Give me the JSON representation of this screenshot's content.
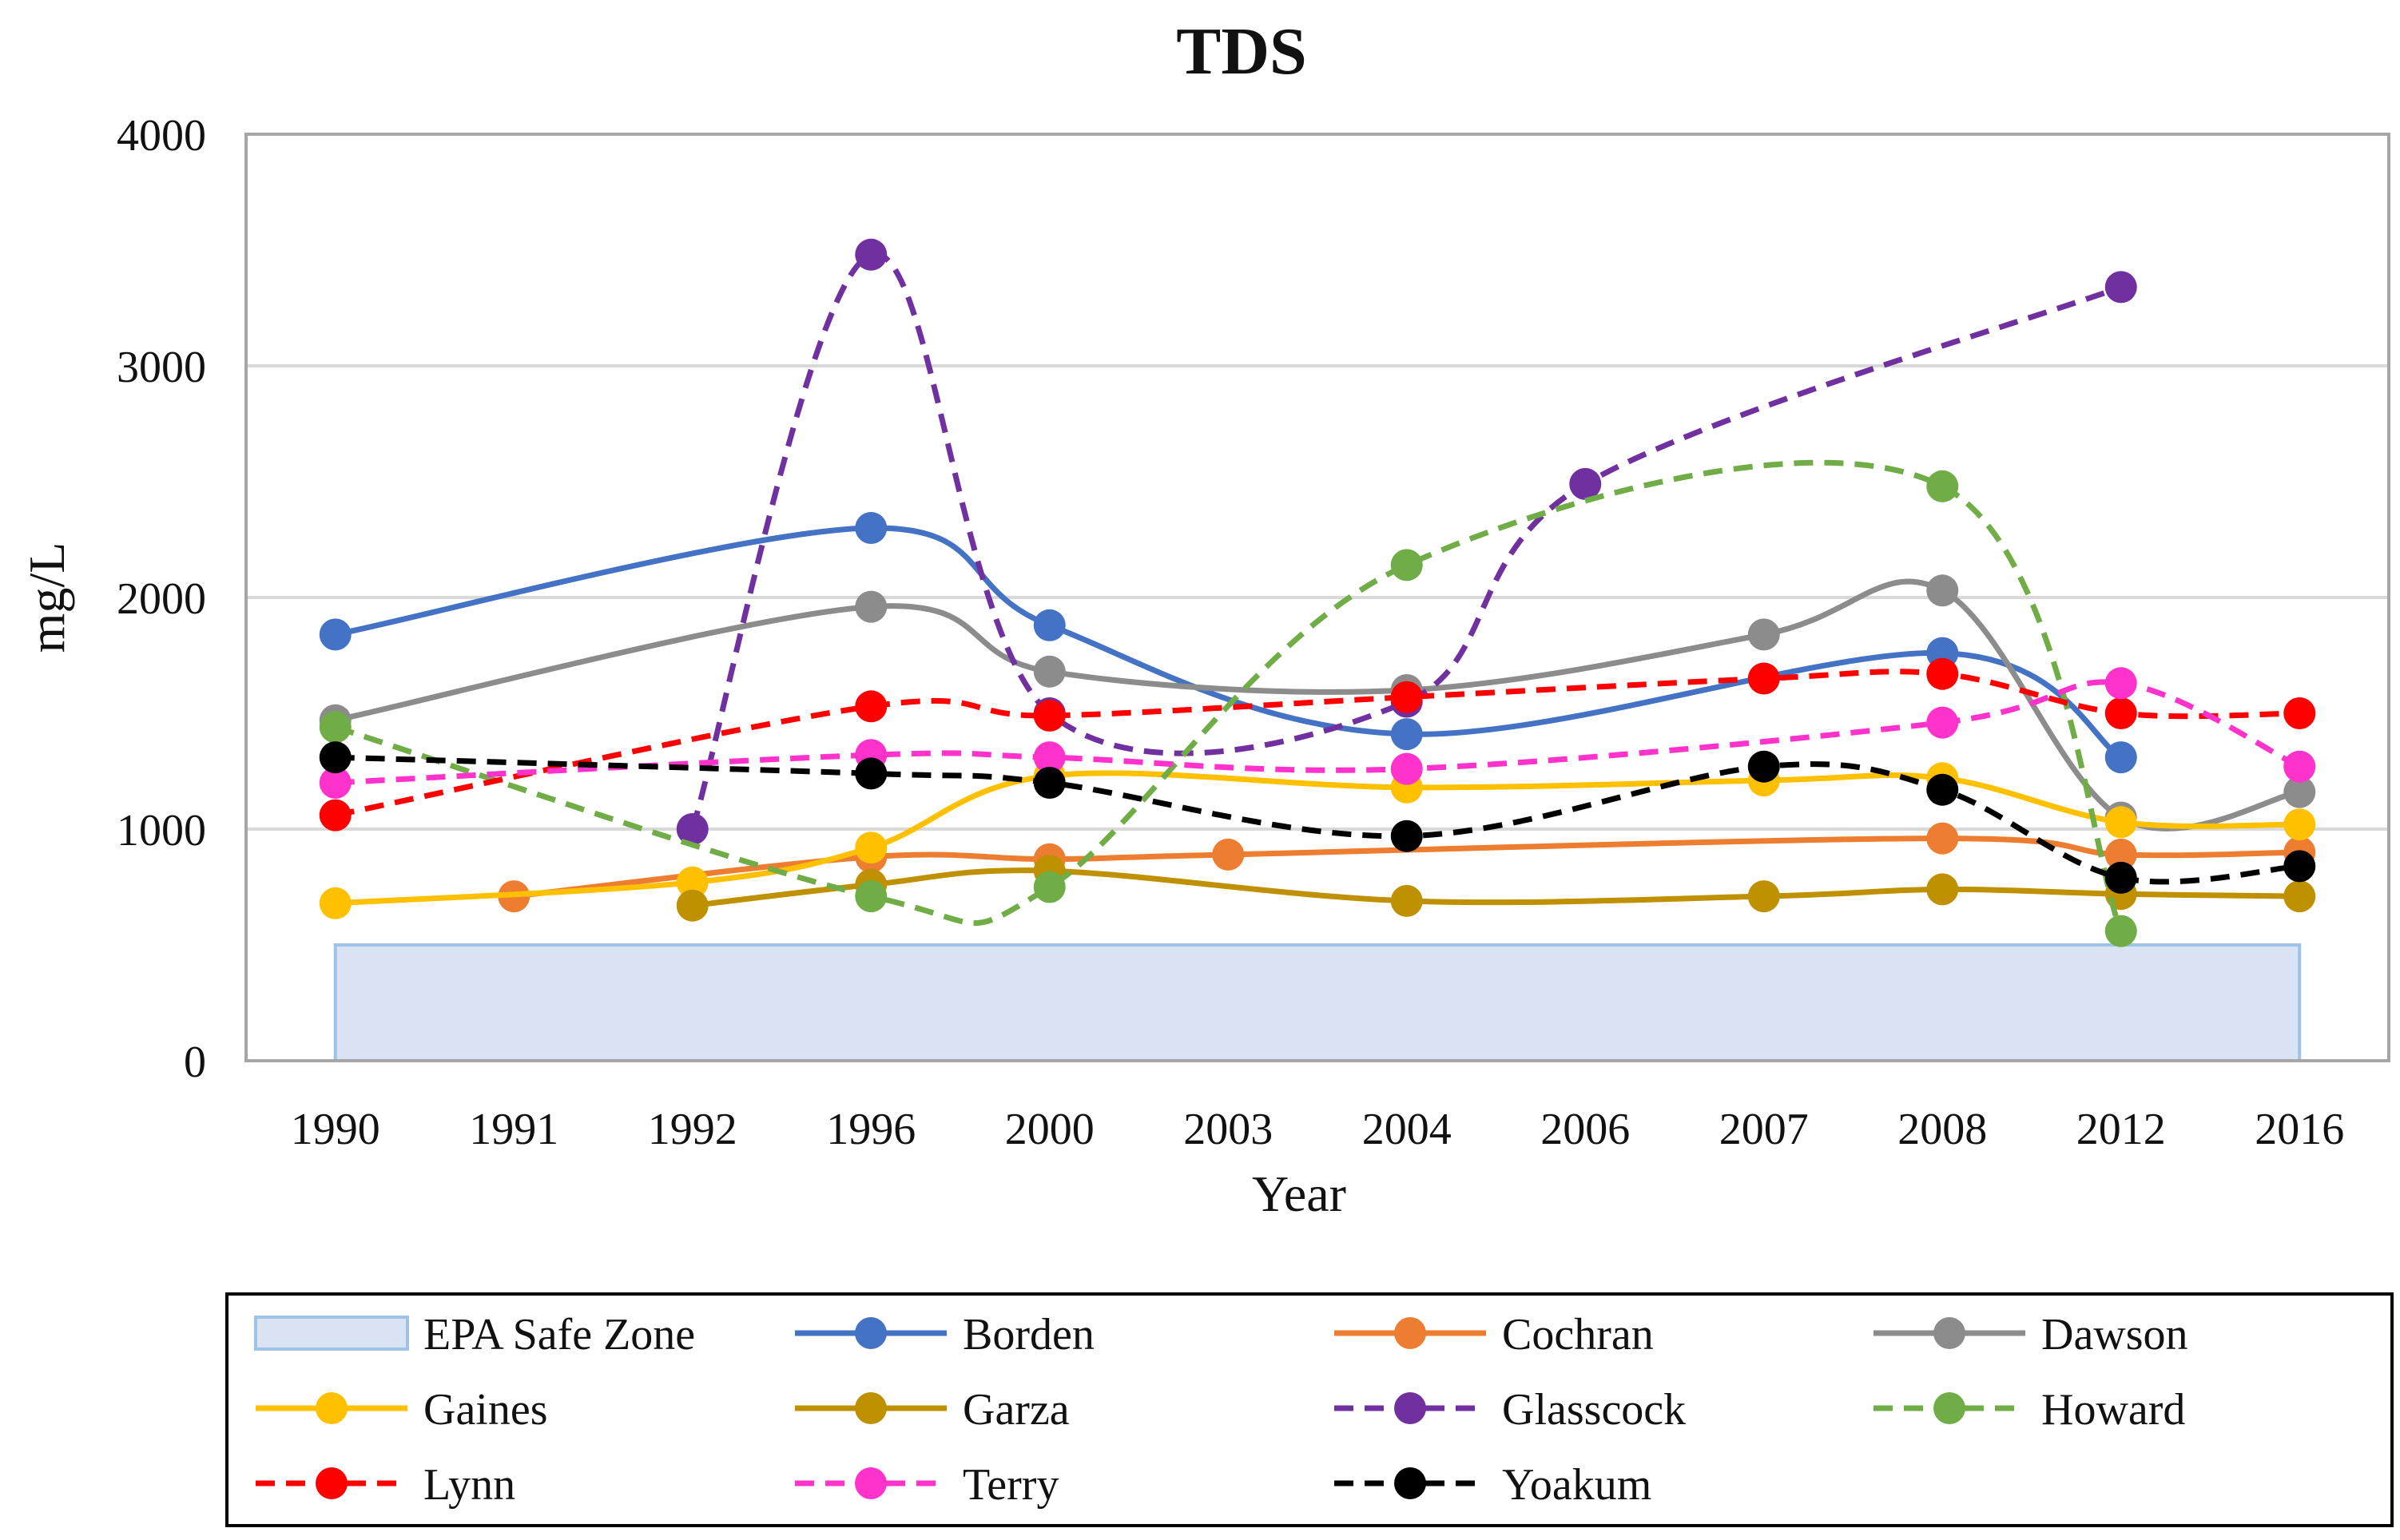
{
  "chart_data": {
    "type": "line",
    "title": "TDS",
    "xlabel": "Year",
    "ylabel": "mg/L",
    "ylim": [
      0,
      4000
    ],
    "yticks": [
      0,
      1000,
      2000,
      3000,
      4000
    ],
    "ytick_labels": [
      "0",
      "1000",
      "2000",
      "3000",
      "4000"
    ],
    "grid": true,
    "legend_position": "bottom",
    "categories": [
      "1990",
      "1991",
      "1992",
      "1996",
      "2000",
      "2003",
      "2004",
      "2006",
      "2007",
      "2008",
      "2012",
      "2016"
    ],
    "band": {
      "name": "EPA Safe Zone",
      "from": 0,
      "to": 500,
      "color": "#dae3f3",
      "edge": "#9dc3e6"
    },
    "series": [
      {
        "name": "Borden",
        "color": "#4472c4",
        "dashed": false,
        "values": [
          1840,
          null,
          null,
          2300,
          1880,
          null,
          1410,
          null,
          null,
          1760,
          1310,
          null
        ]
      },
      {
        "name": "Cochran",
        "color": "#ed7d31",
        "dashed": false,
        "values": [
          null,
          710,
          null,
          880,
          870,
          890,
          null,
          null,
          null,
          960,
          890,
          900
        ]
      },
      {
        "name": "Dawson",
        "color": "#8c8c8c",
        "dashed": false,
        "values": [
          1470,
          null,
          null,
          1960,
          1680,
          null,
          1600,
          null,
          1840,
          2030,
          1050,
          1160
        ]
      },
      {
        "name": "Gaines",
        "color": "#ffc000",
        "dashed": false,
        "values": [
          680,
          null,
          770,
          920,
          1230,
          null,
          1180,
          null,
          1210,
          1220,
          1030,
          1020
        ]
      },
      {
        "name": "Garza",
        "color": "#bf9000",
        "dashed": false,
        "values": [
          null,
          null,
          670,
          760,
          820,
          null,
          690,
          null,
          710,
          740,
          720,
          710
        ]
      },
      {
        "name": "Glasscock",
        "color": "#7030a0",
        "dashed": true,
        "values": [
          null,
          null,
          1000,
          3480,
          1500,
          null,
          1550,
          2490,
          null,
          null,
          3340,
          null
        ]
      },
      {
        "name": "Howard",
        "color": "#70ad47",
        "dashed": true,
        "values": [
          1440,
          null,
          null,
          710,
          750,
          null,
          2140,
          null,
          null,
          2480,
          560,
          null
        ]
      },
      {
        "name": "Lynn",
        "color": "#ff0000",
        "dashed": true,
        "values": [
          1060,
          null,
          null,
          1530,
          1490,
          null,
          1570,
          null,
          1650,
          1670,
          1500,
          1500
        ]
      },
      {
        "name": "Terry",
        "color": "#ff33cc",
        "dashed": true,
        "values": [
          1200,
          null,
          null,
          1320,
          1310,
          null,
          1260,
          null,
          null,
          1460,
          1630,
          1270
        ]
      },
      {
        "name": "Yoakum",
        "color": "#000000",
        "dashed": true,
        "values": [
          1310,
          null,
          null,
          1240,
          1200,
          null,
          970,
          null,
          1270,
          1170,
          790,
          840
        ]
      }
    ]
  }
}
